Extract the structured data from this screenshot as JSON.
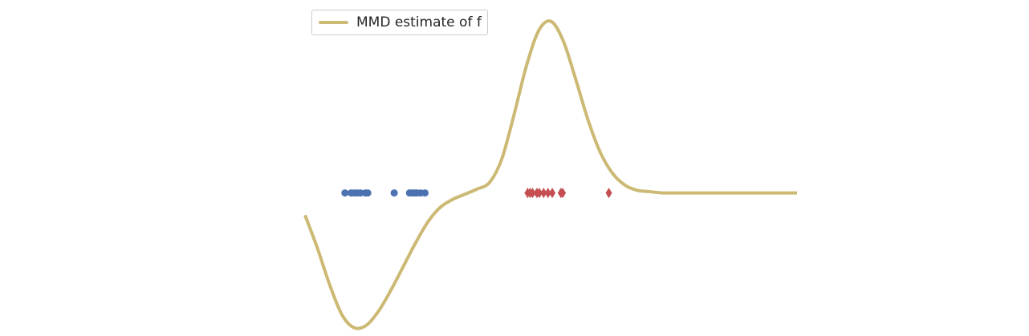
{
  "chart_data": {
    "type": "line",
    "title": "",
    "xlabel": "",
    "ylabel": "",
    "grid": false,
    "axes_visible": false,
    "legend_placement": "top-left",
    "xlim": [
      -4.0,
      4.0
    ],
    "ylim": [
      -1.05,
      1.4
    ],
    "series": [
      {
        "name": "MMD estimate of f",
        "kind": "line",
        "color": "#ccb974",
        "x": [
          -4.0,
          -3.8,
          -3.6,
          -3.4,
          -3.2,
          -3.0,
          -2.8,
          -2.6,
          -2.4,
          -2.2,
          -2.0,
          -1.8,
          -1.6,
          -1.4,
          -1.2,
          -1.0,
          -0.8,
          -0.6,
          -0.4,
          -0.2,
          0.0,
          0.2,
          0.4,
          0.6,
          0.8,
          1.0,
          1.2,
          1.4,
          1.6,
          1.8,
          2.0,
          2.2,
          2.4,
          2.6,
          2.8,
          3.0,
          3.2,
          3.4,
          3.6,
          3.8,
          4.0
        ],
        "y": [
          -0.17,
          -0.42,
          -0.7,
          -0.93,
          -1.03,
          -1.01,
          -0.9,
          -0.74,
          -0.56,
          -0.38,
          -0.22,
          -0.11,
          -0.05,
          -0.01,
          0.03,
          0.08,
          0.26,
          0.6,
          0.97,
          1.24,
          1.31,
          1.16,
          0.87,
          0.56,
          0.31,
          0.15,
          0.06,
          0.02,
          0.01,
          0.0,
          0.0,
          0.0,
          0.0,
          0.0,
          0.0,
          0.0,
          0.0,
          0.0,
          0.0,
          0.0,
          0.0
        ]
      },
      {
        "name": "",
        "kind": "scatter",
        "marker": "circle",
        "color": "#4c72b0",
        "x": [
          -3.35,
          -3.25,
          -3.2,
          -3.15,
          -3.1,
          -3.02,
          -2.98,
          -2.55,
          -2.3,
          -2.25,
          -2.22,
          -2.18,
          -2.12,
          -2.05
        ],
        "y": [
          0,
          0,
          0,
          0,
          0,
          0,
          0,
          0,
          0,
          0,
          0,
          0,
          0,
          0
        ]
      },
      {
        "name": "",
        "kind": "scatter",
        "marker": "diamond",
        "color": "#c44e52",
        "x": [
          -0.38,
          -0.34,
          -0.3,
          -0.23,
          -0.19,
          -0.12,
          -0.05,
          0.02,
          0.16,
          0.19,
          0.94
        ],
        "y": [
          0,
          0,
          0,
          0,
          0,
          0,
          0,
          0,
          0,
          0,
          0
        ]
      }
    ]
  }
}
